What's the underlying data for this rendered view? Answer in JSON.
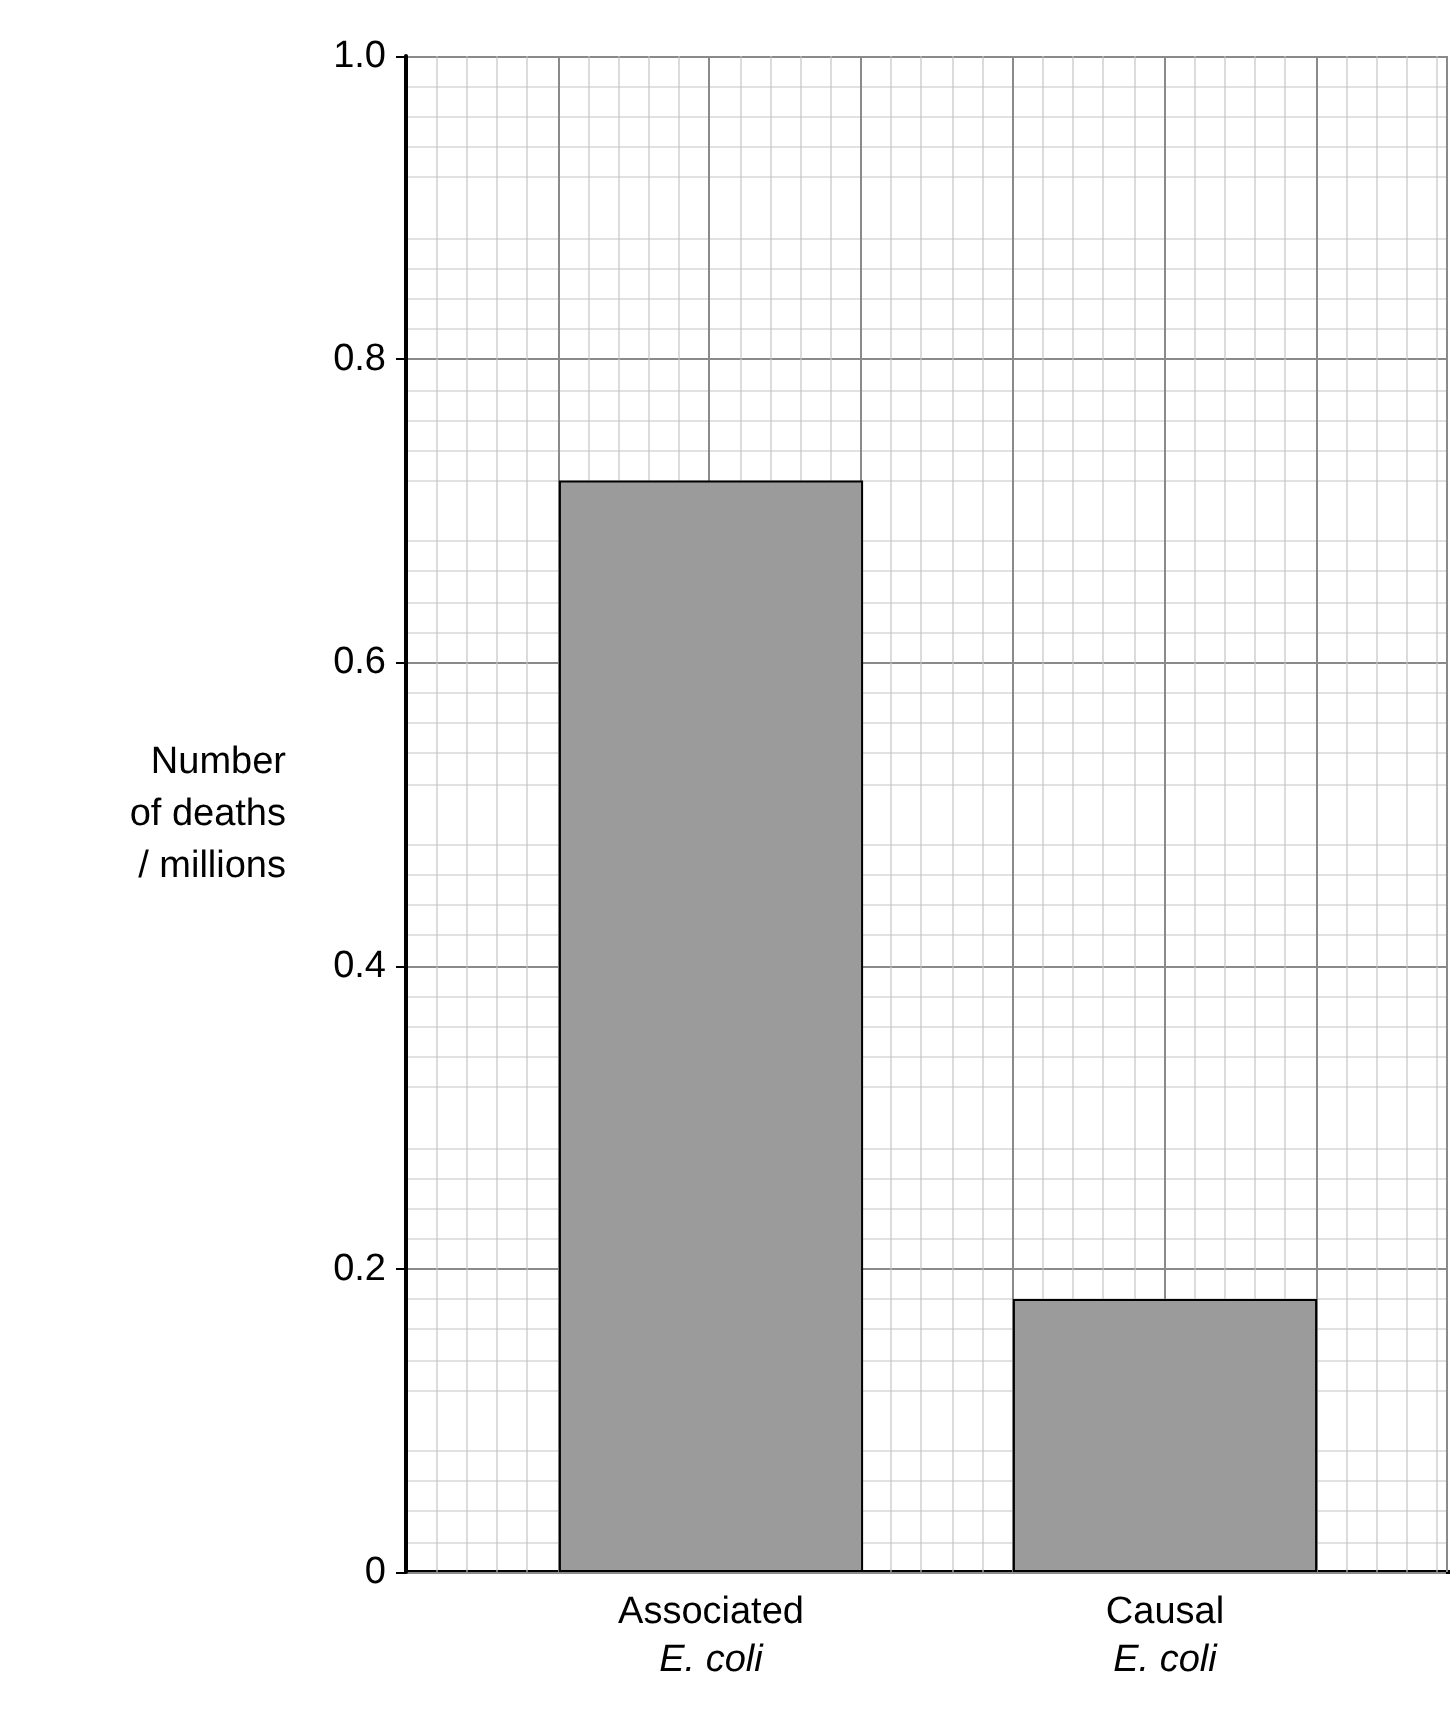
{
  "chart_data": {
    "type": "bar",
    "ylabel": "Number\nof deaths\n/ millions",
    "categories": [
      "Associated\nE. coli",
      "Causal\nE. coli"
    ],
    "values": [
      0.72,
      0.18
    ],
    "color": "#9b9b9b",
    "ylim": [
      0,
      1.0
    ],
    "yticks": [
      {
        "value": 0,
        "label": "0"
      },
      0.2,
      0.4,
      0.6,
      0.8,
      {
        "value": 1.0,
        "label": "1.0"
      }
    ],
    "grid": true
  }
}
